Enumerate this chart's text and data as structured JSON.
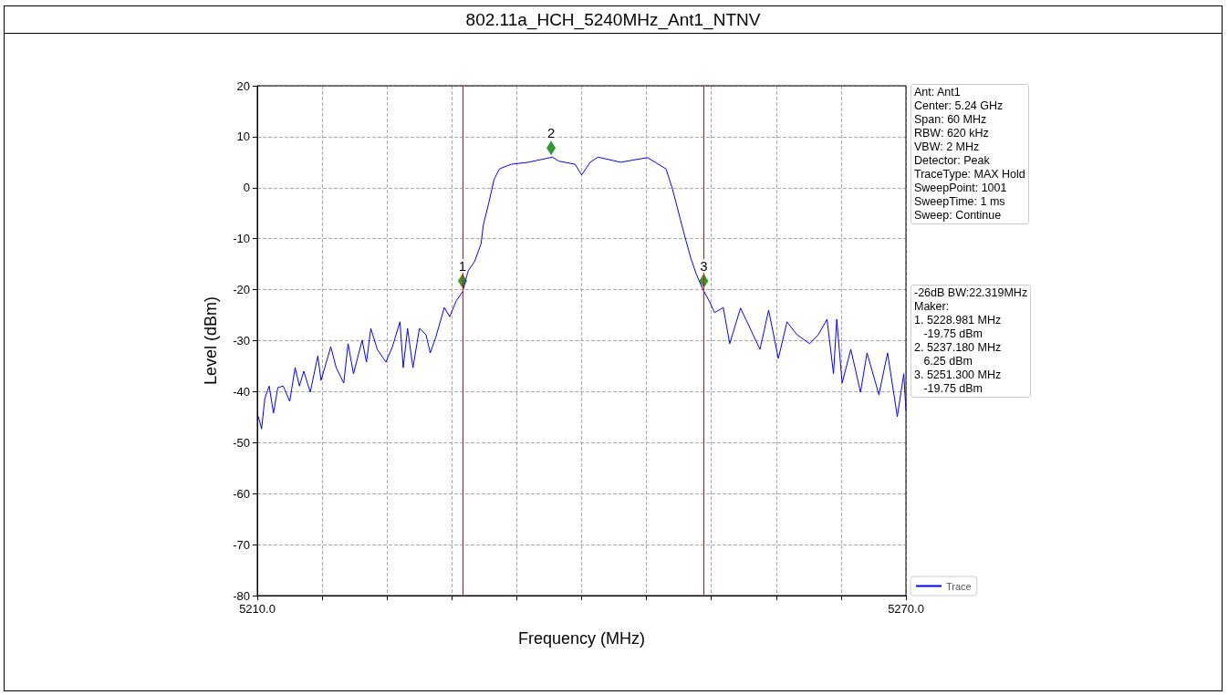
{
  "chart_data": {
    "type": "line",
    "title": "802.11a_HCH_5240MHz_Ant1_NTNV",
    "xlabel": "Frequency (MHz)",
    "ylabel": "Level (dBm)",
    "xlim": [
      5210,
      5270
    ],
    "xticks": [
      {
        "value": 5210,
        "label": "5210.0"
      },
      {
        "value": 5216,
        "label": null
      },
      {
        "value": 5222,
        "label": null
      },
      {
        "value": 5228,
        "label": null
      },
      {
        "value": 5234,
        "label": null
      },
      {
        "value": 5240,
        "label": null
      },
      {
        "value": 5246,
        "label": null
      },
      {
        "value": 5252,
        "label": null
      },
      {
        "value": 5258,
        "label": null
      },
      {
        "value": 5264,
        "label": null
      },
      {
        "value": 5270,
        "label": "5270.0"
      }
    ],
    "ylim": [
      -80,
      20
    ],
    "yticks": [
      -80,
      -70,
      -60,
      -50,
      -40,
      -30,
      -20,
      -10,
      0,
      10,
      20
    ],
    "grid": true,
    "legend": "bottom right",
    "line_style": "solid",
    "series": [
      {
        "name": "Trace",
        "color": "#0000ff",
        "marker": "none",
        "x": [
          5210.1,
          5210.4,
          5210.7,
          5211.1,
          5211.5,
          5211.9,
          5212.4,
          5213.0,
          5213.5,
          5213.9,
          5214.3,
          5214.9,
          5215.6,
          5215.9,
          5216.8,
          5217.3,
          5218.0,
          5218.4,
          5218.9,
          5219.7,
          5220.1,
          5220.5,
          5221.1,
          5221.9,
          5222.5,
          5223.2,
          5223.5,
          5223.9,
          5224.4,
          5225.0,
          5225.6,
          5226.0,
          5226.5,
          5227.3,
          5227.8,
          5228.4,
          5229.0,
          5229.5,
          5230.1,
          5230.7,
          5230.9,
          5231.4,
          5231.9,
          5232.4,
          5233.5,
          5235.1,
          5237.3,
          5237.9,
          5239.4,
          5240.0,
          5240.8,
          5241.5,
          5243.6,
          5246.1,
          5247.8,
          5248.4,
          5248.9,
          5249.5,
          5250.1,
          5250.6,
          5251.2,
          5251.8,
          5252.3,
          5253.1,
          5253.7,
          5254.7,
          5255.7,
          5256.5,
          5257.3,
          5258.2,
          5259.0,
          5259.9,
          5261.1,
          5261.9,
          5262.7,
          5263.3,
          5263.6,
          5264.1,
          5264.9,
          5265.8,
          5266.4,
          5267.5,
          5268.3,
          5269.2,
          5269.8,
          5270.0
        ],
        "values": [
          -44.9,
          -47.3,
          -41.3,
          -38.9,
          -44.2,
          -39.2,
          -38.9,
          -41.9,
          -35.3,
          -38.9,
          -36.0,
          -40.1,
          -33.0,
          -37.8,
          -31.2,
          -35.3,
          -38.3,
          -30.6,
          -36.5,
          -29.9,
          -34.2,
          -27.6,
          -31.7,
          -34.2,
          -31.2,
          -26.3,
          -35.3,
          -27.6,
          -35.3,
          -27.6,
          -28.8,
          -32.4,
          -29.4,
          -23.5,
          -25.3,
          -22.2,
          -20.4,
          -16.3,
          -14.5,
          -11.0,
          -7.4,
          -3.1,
          1.6,
          3.7,
          4.6,
          5.0,
          6.0,
          5.2,
          4.6,
          2.5,
          5.0,
          6.0,
          5.0,
          5.9,
          3.7,
          -0.2,
          -4.3,
          -9.2,
          -13.8,
          -16.9,
          -19.9,
          -22.2,
          -24.5,
          -23.5,
          -30.6,
          -23.6,
          -28.1,
          -31.7,
          -24.0,
          -33.5,
          -26.3,
          -28.8,
          -30.6,
          -28.8,
          -25.8,
          -36.5,
          -25.8,
          -38.3,
          -31.7,
          -40.1,
          -32.4,
          -40.6,
          -32.4,
          -44.9,
          -36.5,
          -43.7
        ]
      },
      {
        "type": "scatter",
        "color": "#008000",
        "marker": "diamond",
        "x": [
          5228.981,
          5237.18,
          5251.3
        ],
        "values": [
          -18.3,
          7.8,
          -18.3
        ]
      }
    ],
    "ref_lines": [
      {
        "axis": "x",
        "value": 5228.981,
        "label": null,
        "color": "#ff0000"
      },
      {
        "axis": "x",
        "value": 5251.3,
        "label": null,
        "color": "#ff0000"
      }
    ],
    "annotations": [
      {
        "text": "1",
        "x": 5228.981,
        "y": -18.3
      },
      {
        "text": "2",
        "x": 5237.18,
        "y": 7.8
      },
      {
        "text": "3",
        "x": 5251.3,
        "y": -18.3
      },
      "Ant: Ant1\nCenter: 5.24 GHz\nSpan: 60 MHz\nRBW: 620 kHz\nVBW: 2 MHz\nDetector: Peak\nTraceType: MAX Hold\nSweepPoint: 1001\nSweepTime: 1 ms\nSweep: Continue",
      "-26dB BW:22.319MHz\nMaker:\n1. 5228.981 MHz\n   -19.75 dBm\n2. 5237.180 MHz\n   6.25 dBm\n3. 5251.300 MHz\n   -19.75 dBm"
    ]
  }
}
